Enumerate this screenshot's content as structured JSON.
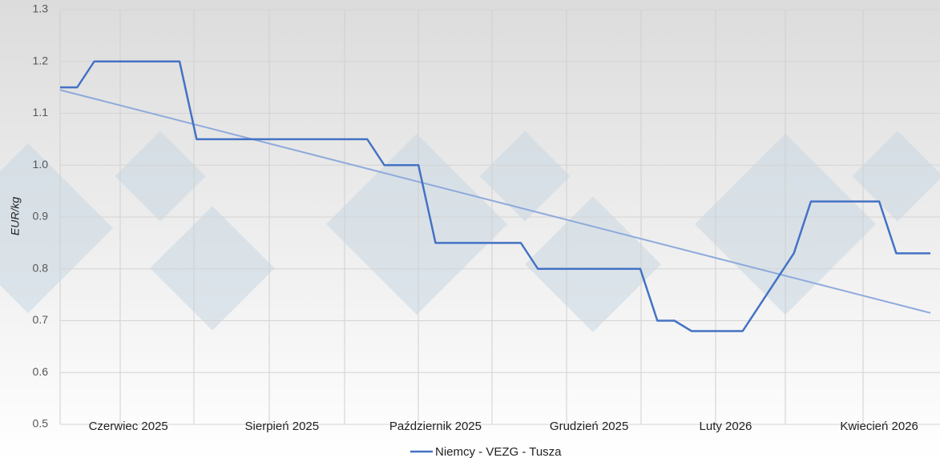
{
  "chart_data": {
    "type": "line",
    "y_label": "EUR/kg",
    "categories": [
      null,
      null,
      null,
      null,
      "Czerwiec 2025",
      null,
      null,
      null,
      null,
      null,
      null,
      null,
      null,
      "Sierpień 2025",
      null,
      null,
      null,
      null,
      null,
      null,
      null,
      null,
      "Październik 2025",
      null,
      null,
      null,
      null,
      null,
      null,
      null,
      null,
      "Grudzień 2025",
      null,
      null,
      null,
      null,
      null,
      null,
      null,
      "Luty 2026",
      null,
      null,
      null,
      null,
      null,
      null,
      null,
      null,
      "Kwiecień 2026",
      null,
      null,
      null
    ],
    "series": [
      {
        "name": "Niemcy - VEZG - Tusza",
        "color": "#4472c4",
        "values": [
          1.15,
          1.15,
          1.2,
          1.2,
          1.2,
          1.2,
          1.2,
          1.2,
          1.05,
          1.05,
          1.05,
          1.05,
          1.05,
          1.05,
          1.05,
          1.05,
          1.05,
          1.05,
          1.05,
          1.0,
          1.0,
          1.0,
          0.85,
          0.85,
          0.85,
          0.85,
          0.85,
          0.85,
          0.8,
          0.8,
          0.8,
          0.8,
          0.8,
          0.8,
          0.8,
          0.7,
          0.7,
          0.68,
          0.68,
          0.68,
          0.68,
          0.73,
          0.78,
          0.83,
          0.93,
          0.93,
          0.93,
          0.93,
          0.93,
          0.83,
          0.83,
          0.83
        ]
      }
    ],
    "trendline": {
      "color": "#8eaadb",
      "values": [
        1.145,
        0.715
      ]
    },
    "ylim": [
      0.5,
      1.3
    ],
    "yticks": [
      0.5,
      0.6,
      0.7,
      0.8,
      0.9,
      {
        "value": 1,
        "label": "1.0"
      },
      1.1,
      1.2,
      1.3
    ],
    "grid": true,
    "legend": "bottom"
  }
}
